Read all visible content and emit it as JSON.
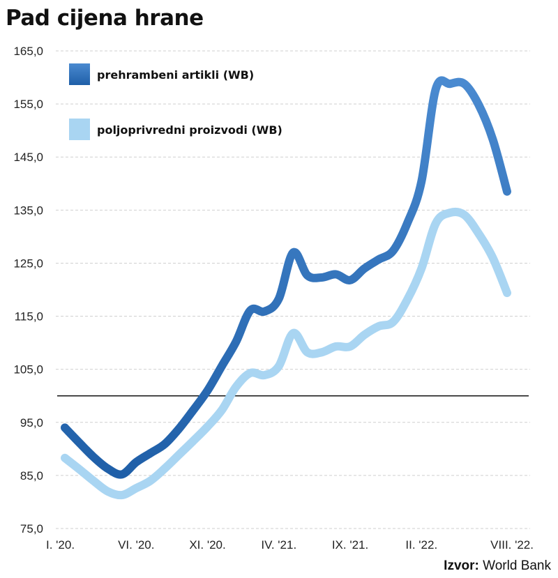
{
  "chart_data": {
    "type": "line",
    "title": "Pad cijena hrane",
    "xlabel": "",
    "ylabel": "",
    "ylim": [
      75,
      165
    ],
    "yticks": [
      "165,0",
      "155,0",
      "145,0",
      "135,0",
      "125,0",
      "115,0",
      "105,0",
      "95,0",
      "85,0",
      "75,0"
    ],
    "ytick_values": [
      165,
      155,
      145,
      135,
      125,
      115,
      105,
      95,
      85,
      75
    ],
    "xticks": [
      {
        "label": "I. '20.",
        "month_index": 0
      },
      {
        "label": "VI. '20.",
        "month_index": 5
      },
      {
        "label": "XI. '20.",
        "month_index": 10
      },
      {
        "label": "IV. '21.",
        "month_index": 15
      },
      {
        "label": "IX. '21.",
        "month_index": 20
      },
      {
        "label": "II. '22.",
        "month_index": 25
      },
      {
        "label": "VIII. '22.",
        "month_index": 31
      }
    ],
    "reference_line": 100,
    "grid": true,
    "legend_position": "top-left",
    "series": [
      {
        "name": "prehrambeni artikli (WB)",
        "color": "#2f6fb8",
        "values": [
          94.0,
          91.2,
          88.5,
          86.3,
          85.2,
          87.5,
          89.2,
          90.9,
          93.8,
          97.3,
          101.0,
          105.6,
          110.2,
          116.1,
          115.9,
          118.3,
          127.0,
          122.7,
          122.3,
          122.9,
          121.8,
          124.0,
          125.7,
          127.3,
          132.5,
          140.4,
          157.8,
          158.8,
          158.8,
          154.9,
          148.3,
          138.5
        ]
      },
      {
        "name": "poljoprivredni proizvodi (WB)",
        "color": "#a9d5f2",
        "values": [
          88.3,
          86.2,
          84.0,
          82.0,
          81.3,
          82.6,
          84.0,
          86.3,
          88.9,
          91.5,
          94.2,
          97.3,
          101.7,
          104.3,
          103.9,
          105.6,
          111.8,
          108.2,
          108.2,
          109.3,
          109.3,
          111.5,
          113.1,
          113.9,
          118.1,
          124.0,
          132.5,
          134.5,
          134.1,
          130.6,
          126.0,
          119.4
        ]
      }
    ]
  },
  "source_label": "Izvor:",
  "source_value": "World Bank"
}
